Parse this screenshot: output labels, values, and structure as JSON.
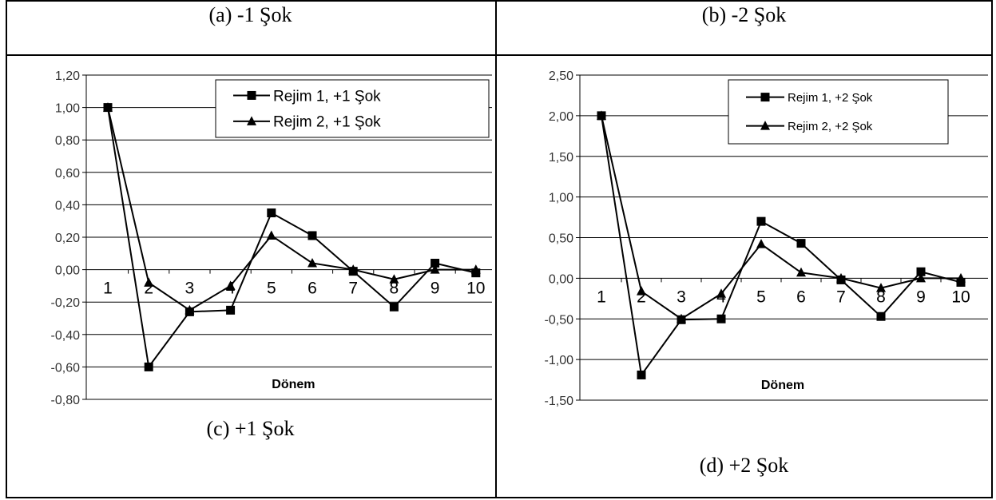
{
  "captions": {
    "a": "(a) -1 Şok",
    "b": "(b) -2 Şok",
    "c": "(c) +1 Şok",
    "d": "(d) +2 Şok"
  },
  "colors": {
    "line": "#000000",
    "grid": "#000000",
    "background": "#ffffff"
  },
  "chart_data": [
    {
      "type": "line",
      "xlabel": "Dönem",
      "ylabel": "",
      "ylim": [
        -0.8,
        1.2
      ],
      "ytick_step": 0.2,
      "ytick_labels": [
        "1,20",
        "1,00",
        "0,80",
        "0,60",
        "0,40",
        "0,20",
        "0,00",
        "-0,20",
        "-0,40",
        "-0,60",
        "-0,80"
      ],
      "categories": [
        "1",
        "2",
        "3",
        "4",
        "5",
        "6",
        "7",
        "8",
        "9",
        "10"
      ],
      "legend_position": "top-right",
      "grid": true,
      "series": [
        {
          "name": "Rejim 1, +1 Şok",
          "marker": "square",
          "values": [
            1.0,
            -0.6,
            -0.26,
            -0.25,
            0.35,
            0.21,
            -0.01,
            -0.23,
            0.04,
            -0.02
          ]
        },
        {
          "name": "Rejim 2, +1 Şok",
          "marker": "triangle",
          "values": [
            1.0,
            -0.08,
            -0.25,
            -0.1,
            0.21,
            0.04,
            0.0,
            -0.06,
            0.0,
            0.0
          ]
        }
      ]
    },
    {
      "type": "line",
      "xlabel": "Dönem",
      "ylabel": "",
      "ylim": [
        -1.5,
        2.5
      ],
      "ytick_step": 0.5,
      "ytick_labels": [
        "2,50",
        "2,00",
        "1,50",
        "1,00",
        "0,50",
        "0,00",
        "-0,50",
        "-1,00",
        "-1,50"
      ],
      "categories": [
        "1",
        "2",
        "3",
        "4",
        "5",
        "6",
        "7",
        "8",
        "9",
        "10"
      ],
      "legend_position": "top-right",
      "grid": true,
      "series": [
        {
          "name": "Rejim 1, +2 Şok",
          "marker": "square",
          "values": [
            2.0,
            -1.19,
            -0.51,
            -0.5,
            0.7,
            0.43,
            -0.02,
            -0.47,
            0.08,
            -0.05
          ]
        },
        {
          "name": "Rejim 2, +2 Şok",
          "marker": "triangle",
          "values": [
            2.0,
            -0.16,
            -0.5,
            -0.19,
            0.42,
            0.07,
            0.0,
            -0.12,
            0.0,
            0.0
          ]
        }
      ]
    }
  ]
}
